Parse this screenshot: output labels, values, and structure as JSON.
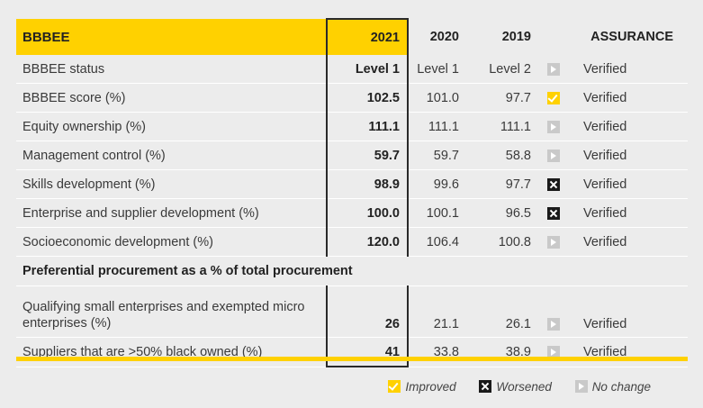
{
  "header": {
    "title": "BBBEE",
    "col_2021": "2021",
    "col_2020": "2020",
    "col_2019": "2019",
    "col_assurance": "ASSURANCE"
  },
  "rows": [
    {
      "label": "BBBEE status",
      "v2021": "Level 1",
      "v2020": "Level 1",
      "v2019": "Level 2",
      "trend": "no-change",
      "assurance": "Verified"
    },
    {
      "label": "BBBEE score (%)",
      "v2021": "102.5",
      "v2020": "101.0",
      "v2019": "97.7",
      "trend": "improved",
      "assurance": "Verified"
    },
    {
      "label": "Equity ownership (%)",
      "v2021": "111.1",
      "v2020": "111.1",
      "v2019": "111.1",
      "trend": "no-change",
      "assurance": "Verified"
    },
    {
      "label": "Management control (%)",
      "v2021": "59.7",
      "v2020": "59.7",
      "v2019": "58.8",
      "trend": "no-change",
      "assurance": "Verified"
    },
    {
      "label": "Skills development (%)",
      "v2021": "98.9",
      "v2020": "99.6",
      "v2019": "97.7",
      "trend": "worsened",
      "assurance": "Verified"
    },
    {
      "label": "Enterprise and supplier development (%)",
      "v2021": "100.0",
      "v2020": "100.1",
      "v2019": "96.5",
      "trend": "worsened",
      "assurance": "Verified"
    },
    {
      "label": "Socioeconomic development (%)",
      "v2021": "120.0",
      "v2020": "106.4",
      "v2019": "100.8",
      "trend": "no-change",
      "assurance": "Verified"
    }
  ],
  "section": {
    "title": "Preferential procurement as a % of total procurement"
  },
  "section_rows": [
    {
      "label": "Qualifying small enterprises and exempted micro enterprises (%)",
      "v2021": "26",
      "v2020": "21.1",
      "v2019": "26.1",
      "trend": "no-change",
      "assurance": "Verified"
    },
    {
      "label": "Suppliers that are >50% black owned (%)",
      "v2021": "41",
      "v2020": "33.8",
      "v2019": "38.9",
      "trend": "no-change",
      "assurance": "Verified"
    }
  ],
  "legend": {
    "improved": "Improved",
    "worsened": "Worsened",
    "no_change": "No change"
  },
  "colors": {
    "accent": "#ffd100",
    "background": "#ececec",
    "worsened": "#1a1a1a",
    "no_change": "#c9c9c9"
  },
  "icons": {
    "improved": "check-icon",
    "worsened": "cross-icon",
    "no_change": "play-arrow-icon"
  }
}
